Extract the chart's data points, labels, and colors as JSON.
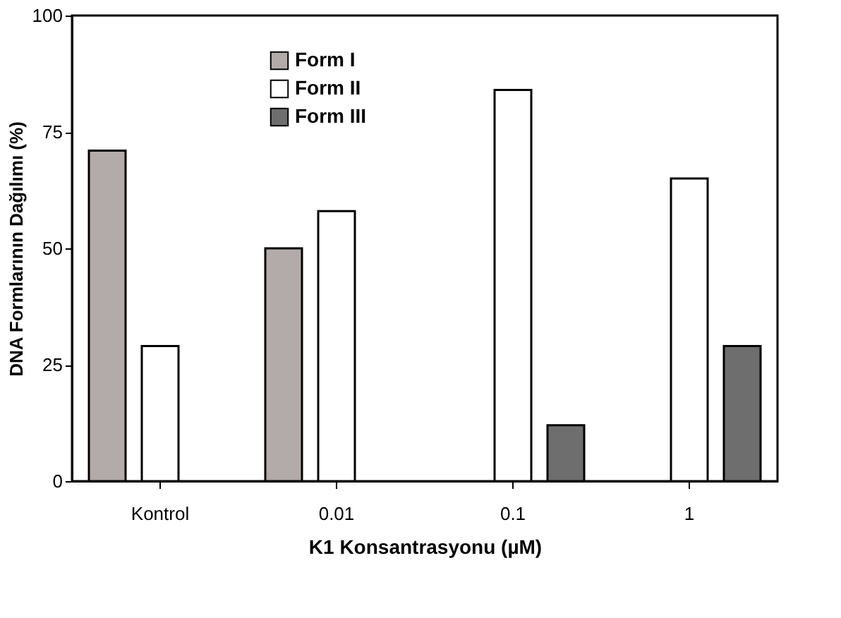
{
  "chart_data": {
    "type": "bar",
    "xlabel": "K1 Konsantrasyonu (µM)",
    "ylabel": "DNA Formlarının Dağılımı (%)",
    "categories": [
      "Kontrol",
      "0.01",
      "0.1",
      "1"
    ],
    "series": [
      {
        "name": "Form I",
        "color": "#b3aaaa",
        "values": [
          71,
          50,
          null,
          null
        ]
      },
      {
        "name": "Form II",
        "color": "#ffffff",
        "values": [
          29,
          58,
          84,
          65
        ]
      },
      {
        "name": "Form III",
        "color": "#6e6e6e",
        "values": [
          null,
          null,
          12,
          29
        ]
      }
    ],
    "ylim": [
      0,
      100
    ],
    "yticks": [
      0,
      25,
      50,
      75,
      100
    ],
    "grid": false,
    "legend": "top left"
  }
}
